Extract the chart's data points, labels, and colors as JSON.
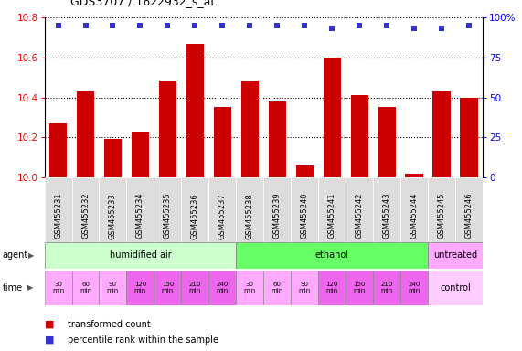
{
  "title": "GDS3707 / 1622932_s_at",
  "samples": [
    "GSM455231",
    "GSM455232",
    "GSM455233",
    "GSM455234",
    "GSM455235",
    "GSM455236",
    "GSM455237",
    "GSM455238",
    "GSM455239",
    "GSM455240",
    "GSM455241",
    "GSM455242",
    "GSM455243",
    "GSM455244",
    "GSM455245",
    "GSM455246"
  ],
  "bar_values": [
    10.27,
    10.43,
    10.19,
    10.23,
    10.48,
    10.67,
    10.35,
    10.48,
    10.38,
    10.06,
    10.6,
    10.41,
    10.35,
    10.02,
    10.43,
    10.4
  ],
  "percentile_values": [
    95,
    95,
    95,
    95,
    95,
    95,
    95,
    95,
    95,
    95,
    93,
    95,
    95,
    93,
    93,
    95
  ],
  "bar_color": "#CC0000",
  "percentile_color": "#3333CC",
  "ylim_left": [
    10.0,
    10.8
  ],
  "ylim_right": [
    0,
    100
  ],
  "yticks_left": [
    10.0,
    10.2,
    10.4,
    10.6,
    10.8
  ],
  "yticks_right": [
    0,
    25,
    50,
    75,
    100
  ],
  "ytick_labels_right": [
    "0",
    "25",
    "50",
    "75",
    "100%"
  ],
  "agent_groups": [
    {
      "label": "humidified air",
      "start": 0,
      "end": 7,
      "color": "#CCFFCC"
    },
    {
      "label": "ethanol",
      "start": 7,
      "end": 14,
      "color": "#66FF66"
    },
    {
      "label": "untreated",
      "start": 14,
      "end": 16,
      "color": "#FFAAFF"
    }
  ],
  "time_labels": [
    "30\nmin",
    "60\nmin",
    "90\nmin",
    "120\nmin",
    "150\nmin",
    "210\nmin",
    "240\nmin",
    "30\nmin",
    "60\nmin",
    "90\nmin",
    "120\nmin",
    "150\nmin",
    "210\nmin",
    "240\nmin"
  ],
  "time_colors": [
    "#FFAAFF",
    "#FFAAFF",
    "#FFAAFF",
    "#EE66EE",
    "#EE66EE",
    "#EE66EE",
    "#EE66EE",
    "#FFAAFF",
    "#FFAAFF",
    "#FFAAFF",
    "#EE66EE",
    "#EE66EE",
    "#EE66EE",
    "#EE66EE"
  ],
  "control_label": "control",
  "control_color": "#FFCCFF",
  "legend_bar_label": "transformed count",
  "legend_pct_label": "percentile rank within the sample",
  "background_color": "#FFFFFF",
  "agent_label": "agent",
  "time_label": "time",
  "sample_box_color": "#DDDDDD",
  "left_label_color": "#444444"
}
